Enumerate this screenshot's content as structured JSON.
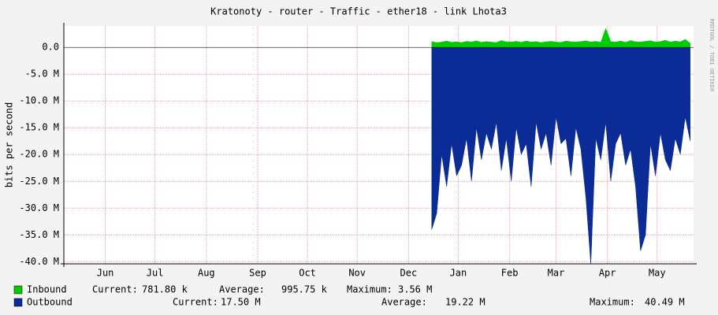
{
  "chart_data": {
    "type": "area",
    "title": "Kratonoty - router - Traffic - ether18 - link Lhota3",
    "y_label": "bits per second",
    "watermark": "RRDTOOL / TOBI OETIKER",
    "xlim": [
      0,
      380
    ],
    "xticks": [
      {
        "value": 25,
        "label": "Jun"
      },
      {
        "value": 55,
        "label": "Jul"
      },
      {
        "value": 86,
        "label": "Aug"
      },
      {
        "value": 117,
        "label": "Sep"
      },
      {
        "value": 147,
        "label": "Oct"
      },
      {
        "value": 177,
        "label": "Nov"
      },
      {
        "value": 208,
        "label": "Dec"
      },
      {
        "value": 238,
        "label": "Jan"
      },
      {
        "value": 269,
        "label": "Feb"
      },
      {
        "value": 297,
        "label": "Mar"
      },
      {
        "value": 328,
        "label": "Apr"
      },
      {
        "value": 358,
        "label": "May"
      }
    ],
    "ylim": [
      -40400000,
      4000000
    ],
    "yticks": [
      {
        "value": 0,
        "label": "0.0"
      },
      {
        "value": -5000000,
        "label": "-5.0 M"
      },
      {
        "value": -10000000,
        "label": "-10.0 M"
      },
      {
        "value": -15000000,
        "label": "-15.0 M"
      },
      {
        "value": -20000000,
        "label": "-20.0 M"
      },
      {
        "value": -25000000,
        "label": "-25.0 M"
      },
      {
        "value": -30000000,
        "label": "-30.0 M"
      },
      {
        "value": -35000000,
        "label": "-35.0 M"
      },
      {
        "value": -40000000,
        "label": "-40.0 M"
      }
    ],
    "grid": true,
    "x": [
      222,
      225,
      228,
      231,
      234,
      237,
      240,
      243,
      246,
      249,
      252,
      255,
      258,
      261,
      264,
      267,
      270,
      273,
      276,
      279,
      282,
      285,
      288,
      291,
      294,
      297,
      300,
      303,
      306,
      309,
      312,
      315,
      318,
      321,
      324,
      327,
      330,
      333,
      336,
      339,
      342,
      345,
      348,
      351,
      354,
      357,
      360,
      363,
      366,
      369,
      372,
      375,
      378
    ],
    "series": [
      {
        "name": "Inbound",
        "color": "#00cc00",
        "values": [
          1100000,
          900000,
          1000000,
          1200000,
          950000,
          1050000,
          900000,
          1150000,
          1000000,
          1250000,
          950000,
          1100000,
          1000000,
          900000,
          1300000,
          1050000,
          1000000,
          1150000,
          950000,
          1200000,
          1000000,
          1100000,
          900000,
          1050000,
          1150000,
          1000000,
          950000,
          1200000,
          1050000,
          1000000,
          1100000,
          1250000,
          1000000,
          1150000,
          950000,
          3560000,
          1100000,
          1000000,
          1200000,
          950000,
          1300000,
          1050000,
          1000000,
          1150000,
          1250000,
          1000000,
          1100000,
          1350000,
          1000000,
          1200000,
          1050000,
          1500000,
          781800
        ],
        "stats": [
          {
            "label": "Current:",
            "value": "781.80 k"
          },
          {
            "label": "Average:",
            "value": "995.75 k"
          },
          {
            "label": "Maximum:",
            "value": "3.56 M"
          }
        ]
      },
      {
        "name": "Outbound",
        "color": "#0b2c96",
        "values": [
          -34000000,
          -31000000,
          -20000000,
          -26000000,
          -18000000,
          -24000000,
          -22000000,
          -17000000,
          -25000000,
          -15000000,
          -21000000,
          -16000000,
          -19000000,
          -14000000,
          -23000000,
          -17000000,
          -25000000,
          -15000000,
          -20000000,
          -18000000,
          -26000000,
          -14000000,
          -19000000,
          -16000000,
          -22000000,
          -13000000,
          -18000000,
          -17000000,
          -24000000,
          -15000000,
          -19000000,
          -28000000,
          -40490000,
          -17000000,
          -21000000,
          -14000000,
          -25000000,
          -18000000,
          -16000000,
          -22000000,
          -19000000,
          -26000000,
          -38000000,
          -35000000,
          -18000000,
          -24000000,
          -16000000,
          -21000000,
          -23000000,
          -17000000,
          -20000000,
          -13000000,
          -17500000
        ],
        "stats": [
          {
            "label": "Current:",
            "value": "17.50 M"
          },
          {
            "label": "Average:",
            "value": "19.22 M"
          },
          {
            "label": "Maximum:",
            "value": "40.49 M"
          }
        ]
      }
    ]
  }
}
